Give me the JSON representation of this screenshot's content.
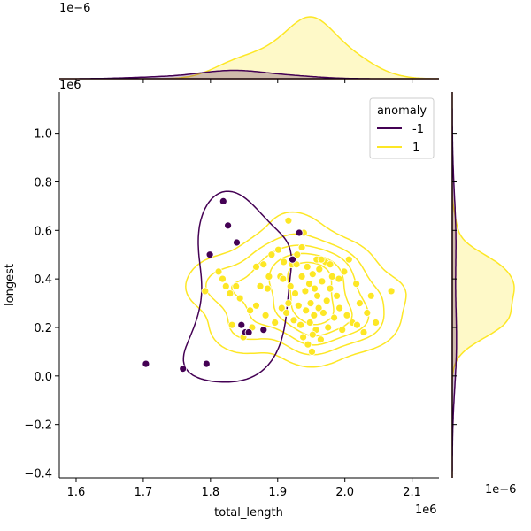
{
  "chart_data": {
    "type": "scatter",
    "xlabel": "total_length",
    "ylabel": "longest",
    "x_exponent_label": "1e6",
    "y_exponent_label": "1e6",
    "top_marginal_exponent_label": "1e−6",
    "right_marginal_exponent_label": "1e−6",
    "xlim": [
      1.575,
      2.14
    ],
    "ylim": [
      -0.42,
      1.17
    ],
    "xticks": [
      "1.6",
      "1.7",
      "1.8",
      "1.9",
      "2.0",
      "2.1"
    ],
    "xtick_values": [
      1.6,
      1.7,
      1.8,
      1.9,
      2.0,
      2.1
    ],
    "yticks": [
      "−0.4",
      "−0.2",
      "0.0",
      "0.2",
      "0.4",
      "0.6",
      "0.8",
      "1.0"
    ],
    "ytick_values": [
      -0.4,
      -0.2,
      0.0,
      0.2,
      0.4,
      0.6,
      0.8,
      1.0
    ],
    "legend": {
      "title": "anomaly",
      "placement": "upper right",
      "entries": [
        {
          "label": "-1",
          "color": "#440154"
        },
        {
          "label": "1",
          "color": "#fde725"
        }
      ]
    },
    "series": [
      {
        "name": "-1",
        "color": "#440154",
        "points": [
          [
            1.704,
            0.05
          ],
          [
            1.759,
            0.03
          ],
          [
            1.794,
            0.05
          ],
          [
            1.799,
            0.5
          ],
          [
            1.819,
            0.72
          ],
          [
            1.826,
            0.62
          ],
          [
            1.839,
            0.55
          ],
          [
            1.846,
            0.21
          ],
          [
            1.852,
            0.18
          ],
          [
            1.857,
            0.18
          ],
          [
            1.879,
            0.19
          ],
          [
            1.922,
            0.48
          ],
          [
            1.932,
            0.59
          ]
        ]
      },
      {
        "name": "1",
        "color": "#fde725",
        "points": [
          [
            1.792,
            0.35
          ],
          [
            1.812,
            0.43
          ],
          [
            1.818,
            0.4
          ],
          [
            1.823,
            0.37
          ],
          [
            1.829,
            0.34
          ],
          [
            1.832,
            0.21
          ],
          [
            1.838,
            0.37
          ],
          [
            1.844,
            0.32
          ],
          [
            1.849,
            0.16
          ],
          [
            1.853,
            0.18
          ],
          [
            1.859,
            0.27
          ],
          [
            1.862,
            0.2
          ],
          [
            1.868,
            0.29
          ],
          [
            1.874,
            0.37
          ],
          [
            1.879,
            0.46
          ],
          [
            1.882,
            0.25
          ],
          [
            1.887,
            0.41
          ],
          [
            1.891,
            0.5
          ],
          [
            1.896,
            0.22
          ],
          [
            1.901,
            0.52
          ],
          [
            1.904,
            0.41
          ],
          [
            1.906,
            0.28
          ],
          [
            1.909,
            0.47
          ],
          [
            1.913,
            0.26
          ],
          [
            1.916,
            0.3
          ],
          [
            1.919,
            0.37
          ],
          [
            1.921,
            0.46
          ],
          [
            1.924,
            0.23
          ],
          [
            1.926,
            0.34
          ],
          [
            1.929,
            0.5
          ],
          [
            1.931,
            0.29
          ],
          [
            1.934,
            0.21
          ],
          [
            1.936,
            0.41
          ],
          [
            1.938,
            0.16
          ],
          [
            1.939,
            0.59
          ],
          [
            1.941,
            0.35
          ],
          [
            1.942,
            0.27
          ],
          [
            1.944,
            0.45
          ],
          [
            1.945,
            0.13
          ],
          [
            1.947,
            0.38
          ],
          [
            1.948,
            0.22
          ],
          [
            1.949,
            0.3
          ],
          [
            1.951,
            0.1
          ],
          [
            1.952,
            0.42
          ],
          [
            1.954,
            0.25
          ],
          [
            1.955,
            0.36
          ],
          [
            1.957,
            0.19
          ],
          [
            1.958,
            0.48
          ],
          [
            1.959,
            0.33
          ],
          [
            1.961,
            0.28
          ],
          [
            1.962,
            0.44
          ],
          [
            1.964,
            0.15
          ],
          [
            1.966,
            0.39
          ],
          [
            1.968,
            0.26
          ],
          [
            1.971,
            0.47
          ],
          [
            1.973,
            0.31
          ],
          [
            1.975,
            0.2
          ],
          [
            1.978,
            0.36
          ],
          [
            1.981,
            0.41
          ],
          [
            1.984,
            0.24
          ],
          [
            1.988,
            0.33
          ],
          [
            1.992,
            0.28
          ],
          [
            1.996,
            0.19
          ],
          [
            1.999,
            0.43
          ],
          [
            2.003,
            0.25
          ],
          [
            2.006,
            0.48
          ],
          [
            2.011,
            0.22
          ],
          [
            2.017,
            0.38
          ],
          [
            2.022,
            0.3
          ],
          [
            2.028,
            0.18
          ],
          [
            2.033,
            0.26
          ],
          [
            2.039,
            0.33
          ],
          [
            2.046,
            0.22
          ],
          [
            2.069,
            0.35
          ],
          [
            1.868,
            0.45
          ],
          [
            1.885,
            0.36
          ],
          [
            1.908,
            0.4
          ],
          [
            1.936,
            0.53
          ],
          [
            1.965,
            0.48
          ],
          [
            1.991,
            0.4
          ],
          [
            1.916,
            0.64
          ],
          [
            1.928,
            0.46
          ],
          [
            1.952,
            0.17
          ],
          [
            1.978,
            0.46
          ],
          [
            2.018,
            0.21
          ]
        ]
      }
    ]
  }
}
